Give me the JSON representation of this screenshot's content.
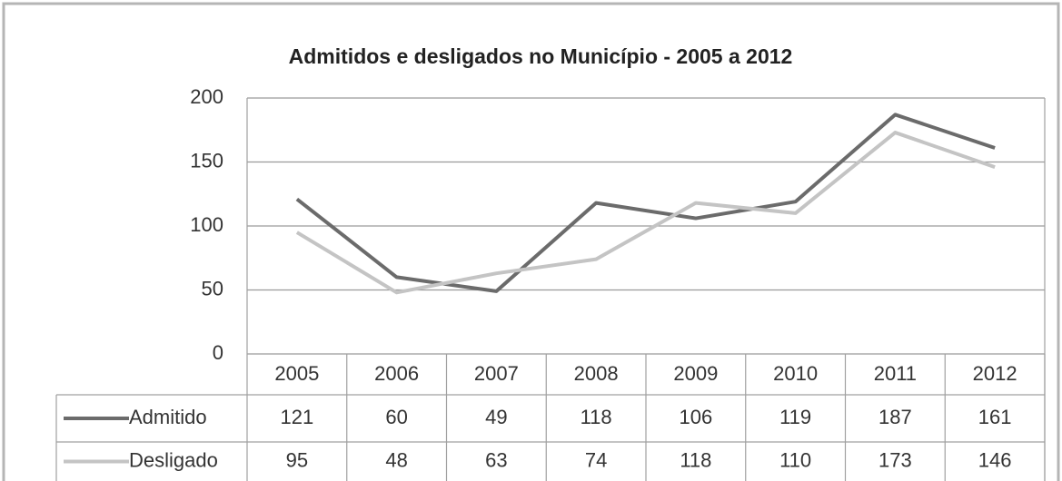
{
  "chart_data": {
    "type": "line",
    "title": "Admitidos e desligados no Município - 2005 a 2012",
    "categories": [
      "2005",
      "2006",
      "2007",
      "2008",
      "2009",
      "2010",
      "2011",
      "2012"
    ],
    "series": [
      {
        "name": "Admitido",
        "color": "#6b6b6b",
        "values": [
          121,
          60,
          49,
          118,
          106,
          119,
          187,
          161
        ]
      },
      {
        "name": "Desligado",
        "color": "#c4c4c4",
        "values": [
          95,
          48,
          63,
          74,
          118,
          110,
          173,
          146
        ]
      }
    ],
    "ylim": [
      0,
      200
    ],
    "yticks": [
      0,
      50,
      100,
      150,
      200
    ],
    "grid": true
  }
}
